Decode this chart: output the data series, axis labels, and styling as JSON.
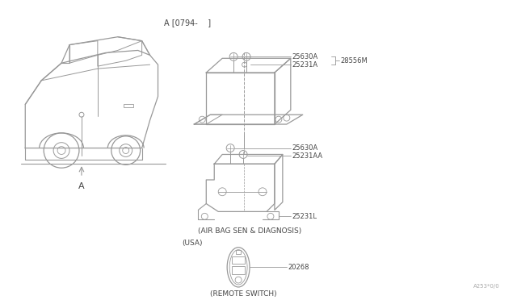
{
  "background_color": "#ffffff",
  "fig_width": 6.4,
  "fig_height": 3.72,
  "dpi": 100,
  "lc": "#999999",
  "tc": "#444444",
  "fs": 6.0,
  "version_label": "A [0794-    ]",
  "label_25630A_top": "25630A",
  "label_25231A": "25231A",
  "label_28556M": "28556M",
  "label_25630A_bot": "25630A",
  "label_25231AA": "25231AA",
  "label_25231L": "25231L",
  "label_20268": "20268",
  "label_airbag": "(AIR BAG SEN & DIAGNOSIS)",
  "label_usa": "(USA)",
  "label_remote": "(REMOTE SWITCH)",
  "label_A": "A",
  "watermark": "A253*0/0"
}
